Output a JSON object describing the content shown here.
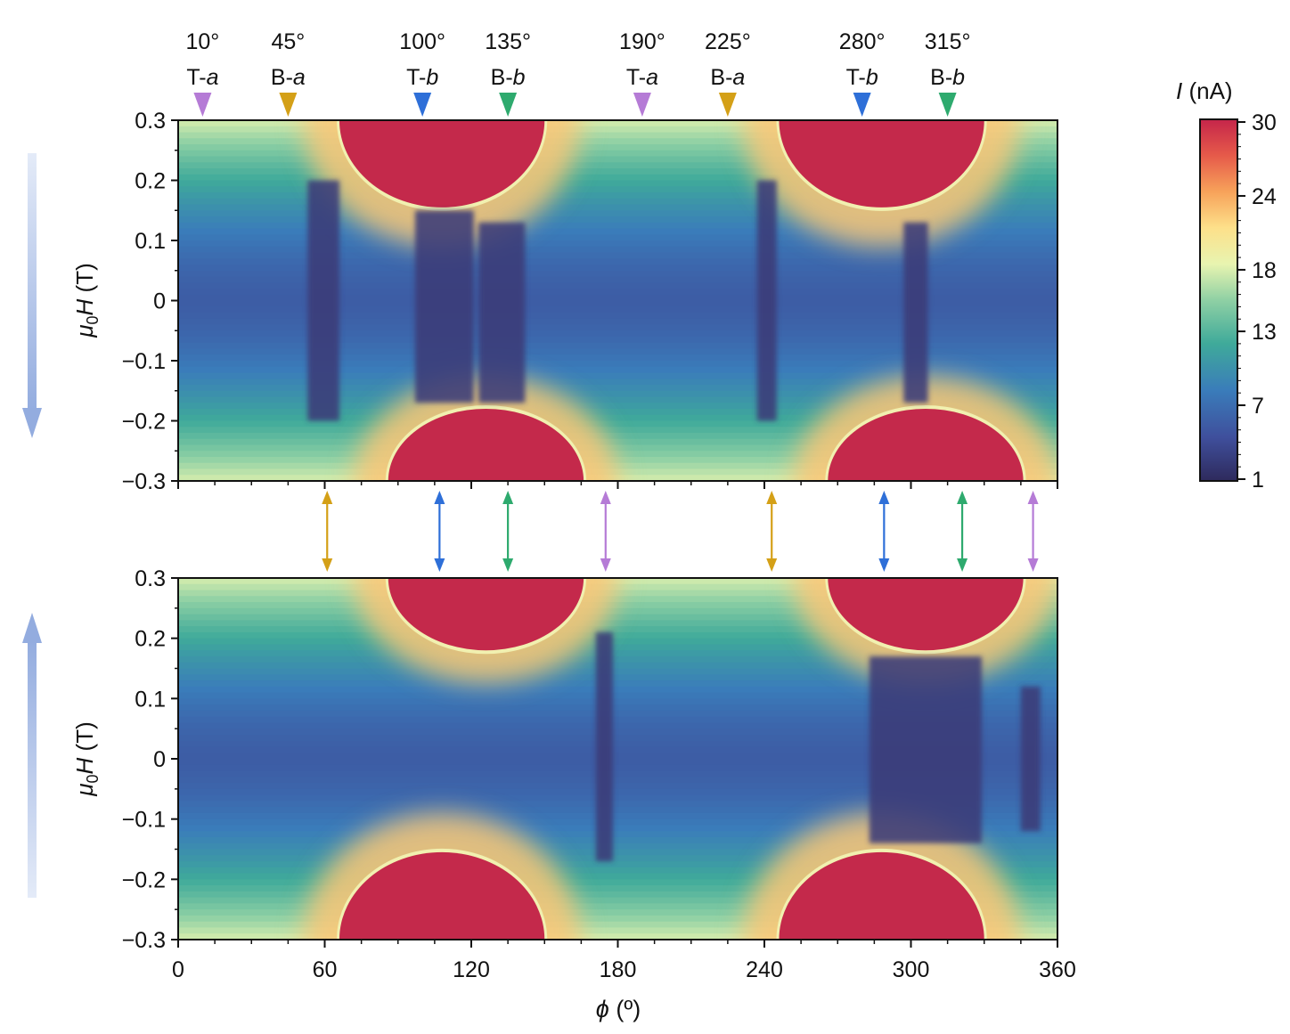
{
  "markers": [
    {
      "angle_label": "10°",
      "prefix": "T-",
      "axis": "a",
      "phi": 10,
      "color": "#b57bd6"
    },
    {
      "angle_label": "45°",
      "prefix": "B-",
      "axis": "a",
      "phi": 45,
      "color": "#d4a017"
    },
    {
      "angle_label": "100°",
      "prefix": "T-",
      "axis": "b",
      "phi": 100,
      "color": "#2e6fd8"
    },
    {
      "angle_label": "135°",
      "prefix": "B-",
      "axis": "b",
      "phi": 135,
      "color": "#2eaa6e"
    },
    {
      "angle_label": "190°",
      "prefix": "T-",
      "axis": "a",
      "phi": 190,
      "color": "#b57bd6"
    },
    {
      "angle_label": "225°",
      "prefix": "B-",
      "axis": "a",
      "phi": 225,
      "color": "#d4a017"
    },
    {
      "angle_label": "280°",
      "prefix": "T-",
      "axis": "b",
      "phi": 280,
      "color": "#2e6fd8"
    },
    {
      "angle_label": "315°",
      "prefix": "B-",
      "axis": "b",
      "phi": 315,
      "color": "#2eaa6e"
    }
  ],
  "connectors": [
    {
      "phi": 61,
      "color": "#d4a017"
    },
    {
      "phi": 107,
      "color": "#2e6fd8"
    },
    {
      "phi": 135,
      "color": "#2eaa6e"
    },
    {
      "phi": 175,
      "color": "#b57bd6"
    },
    {
      "phi": 243,
      "color": "#d4a017"
    },
    {
      "phi": 289,
      "color": "#2e6fd8"
    },
    {
      "phi": 321,
      "color": "#2eaa6e"
    },
    {
      "phi": 350,
      "color": "#b57bd6"
    }
  ],
  "sweep_arrows": [
    {
      "panel": "top",
      "direction": "down"
    },
    {
      "panel": "bottom",
      "direction": "up"
    }
  ],
  "chart_data": {
    "type": "heatmap",
    "xlabel_symbol": "ϕ",
    "xlabel_unit": "(º)",
    "ylabel_sub": "0",
    "ylabel_symbol": "H",
    "ylabel_unit": " (T)",
    "ylabel_mu": "μ",
    "xlim": [
      0,
      360
    ],
    "ylim": [
      -0.3,
      0.3
    ],
    "x_ticks": [
      0,
      60,
      120,
      180,
      240,
      300,
      360
    ],
    "x_tick_labels": [
      "0",
      "60",
      "120",
      "180",
      "240",
      "300",
      "360"
    ],
    "y_ticks": [
      0.3,
      0.2,
      0.1,
      0,
      -0.1,
      -0.2,
      -0.3
    ],
    "y_tick_labels": [
      "0.3",
      "0.2",
      "0.1",
      "0",
      "−0.1",
      "−0.2",
      "−0.3"
    ],
    "colorbar": {
      "label_symbol": "I",
      "label_unit": " (nA)",
      "range": [
        1,
        30
      ],
      "ticks": [
        30,
        24,
        18,
        13,
        7,
        1
      ],
      "tick_labels": [
        "30",
        "24",
        "18",
        "13",
        "7",
        "1"
      ]
    },
    "panels": [
      {
        "name": "top",
        "sweep": "down",
        "red_lobes": [
          {
            "phi_center": 108,
            "phi_half_width": 42,
            "edge": "top",
            "field_reach": 0.155
          },
          {
            "phi_center": 288,
            "phi_half_width": 42,
            "edge": "top",
            "field_reach": 0.155
          },
          {
            "phi_center": 126,
            "phi_half_width": 40,
            "edge": "bottom",
            "field_reach": -0.18
          },
          {
            "phi_center": 306,
            "phi_half_width": 40,
            "edge": "bottom",
            "field_reach": -0.18
          }
        ],
        "dark_bands": [
          {
            "phi_start": 53,
            "phi_end": 66,
            "field_min": -0.2,
            "field_max": 0.2
          },
          {
            "phi_start": 97,
            "phi_end": 121,
            "field_min": -0.17,
            "field_max": 0.15
          },
          {
            "phi_start": 123,
            "phi_end": 142,
            "field_min": -0.17,
            "field_max": 0.13
          },
          {
            "phi_start": 237,
            "phi_end": 245,
            "field_min": -0.2,
            "field_max": 0.2
          },
          {
            "phi_start": 297,
            "phi_end": 307,
            "field_min": -0.17,
            "field_max": 0.13
          }
        ]
      },
      {
        "name": "bottom",
        "sweep": "up",
        "red_lobes": [
          {
            "phi_center": 126,
            "phi_half_width": 40,
            "edge": "top",
            "field_reach": 0.18
          },
          {
            "phi_center": 306,
            "phi_half_width": 40,
            "edge": "top",
            "field_reach": 0.18
          },
          {
            "phi_center": 108,
            "phi_half_width": 42,
            "edge": "bottom",
            "field_reach": -0.155
          },
          {
            "phi_center": 288,
            "phi_half_width": 42,
            "edge": "bottom",
            "field_reach": -0.155
          }
        ],
        "dark_bands": [
          {
            "phi_start": 171,
            "phi_end": 178,
            "field_min": -0.17,
            "field_max": 0.21
          },
          {
            "phi_start": 283,
            "phi_end": 329,
            "field_min": -0.14,
            "field_max": 0.17
          },
          {
            "phi_start": 345,
            "phi_end": 353,
            "field_min": -0.12,
            "field_max": 0.12
          }
        ]
      }
    ]
  }
}
